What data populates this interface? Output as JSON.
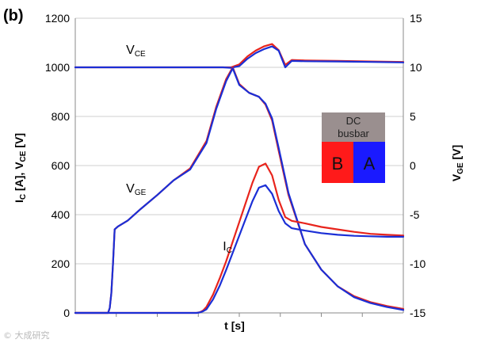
{
  "panel_label": "(b)",
  "watermark": "© 大成研究",
  "colors": {
    "series_B": "#e8241c",
    "series_A": "#1b2fd6",
    "grid": "#cfcfcf",
    "inset_header": "#9a8f8f"
  },
  "inset": {
    "title_line1": "DC",
    "title_line2": "busbar",
    "left_label": "B",
    "right_label": "A",
    "left_color": "#ff1a1a",
    "right_color": "#1a1aff",
    "header_color": "#9a8f8f"
  },
  "chart_data": {
    "type": "line",
    "title": "",
    "xlabel": "t [s]",
    "ylabel_left": "IC [A], VCE [V]",
    "ylabel_left_parts": {
      "i": "I",
      "i_sub": "C",
      "mid": " [A], V",
      "v_sub": "CE",
      "end": " [V]"
    },
    "ylabel_right": "VGE [V]",
    "ylabel_right_parts": {
      "main": "V",
      "sub": "GE",
      "end": " [V]"
    },
    "xlim": [
      0,
      10
    ],
    "ylim_left": [
      0,
      1200
    ],
    "ylim_right": [
      -15,
      15
    ],
    "left_ticks": [
      "0",
      "200",
      "400",
      "600",
      "800",
      "1000",
      "1200"
    ],
    "right_ticks": [
      "-15",
      "-10",
      "-5",
      "0",
      "5",
      "10",
      "15"
    ],
    "grid": "horizontal",
    "annotations": [
      {
        "main": "V",
        "sub": "CE",
        "x": 1.55,
        "y": 1055
      },
      {
        "main": "V",
        "sub": "GE",
        "x": 1.55,
        "y": 490
      },
      {
        "main": "I",
        "sub": "C",
        "x": 4.5,
        "y": 255
      }
    ],
    "series": [
      {
        "id": "VCE_B",
        "legend": "B",
        "axis": "left",
        "color": "#e8241c",
        "x": [
          0,
          4.5,
          4.75,
          5.0,
          5.25,
          5.5,
          5.75,
          6.0,
          6.2,
          6.4,
          6.6,
          7.0,
          8.0,
          9.0,
          10
        ],
        "y": [
          1000,
          1000,
          1000,
          1012,
          1045,
          1068,
          1085,
          1095,
          1070,
          1010,
          1030,
          1028,
          1026,
          1024,
          1022
        ]
      },
      {
        "id": "VCE_A",
        "legend": "A",
        "axis": "left",
        "color": "#1b2fd6",
        "x": [
          0,
          4.5,
          4.75,
          5.0,
          5.25,
          5.5,
          5.75,
          6.0,
          6.2,
          6.4,
          6.6,
          7.0,
          8.0,
          9.0,
          10
        ],
        "y": [
          1000,
          1000,
          998,
          1005,
          1035,
          1058,
          1074,
          1085,
          1068,
          1000,
          1026,
          1025,
          1024,
          1022,
          1020
        ]
      },
      {
        "id": "VGE_B",
        "legend": "B",
        "axis": "right",
        "color": "#e8241c",
        "x": [
          0,
          1.0,
          1.05,
          1.1,
          1.15,
          1.2,
          1.3,
          1.6,
          2.0,
          2.5,
          3.0,
          3.5,
          4.0,
          4.3,
          4.6,
          4.8,
          5.0,
          5.3,
          5.6,
          5.8,
          6.0,
          6.2,
          6.5,
          7.0,
          7.5,
          8.0,
          8.5,
          9.0,
          9.5,
          10
        ],
        "y": [
          -15,
          -15,
          -14.5,
          -13,
          -10,
          -6.5,
          -6.2,
          -5.6,
          -4.4,
          -3.0,
          -1.5,
          -0.3,
          2.5,
          6.0,
          8.8,
          10.0,
          8.3,
          7.4,
          7.0,
          6.2,
          4.6,
          1.5,
          -3.0,
          -8.0,
          -10.6,
          -12.3,
          -13.3,
          -13.9,
          -14.3,
          -14.6
        ]
      },
      {
        "id": "VGE_A",
        "legend": "A",
        "axis": "right",
        "color": "#1b2fd6",
        "x": [
          0,
          1.0,
          1.05,
          1.1,
          1.15,
          1.2,
          1.3,
          1.6,
          2.0,
          2.5,
          3.0,
          3.5,
          4.0,
          4.3,
          4.6,
          4.8,
          5.0,
          5.3,
          5.6,
          5.8,
          6.0,
          6.2,
          6.5,
          7.0,
          7.5,
          8.0,
          8.5,
          9.0,
          9.5,
          10
        ],
        "y": [
          -15,
          -15,
          -14.5,
          -13,
          -10,
          -6.5,
          -6.2,
          -5.6,
          -4.4,
          -3.0,
          -1.5,
          -0.4,
          2.3,
          5.8,
          8.6,
          9.9,
          8.2,
          7.4,
          7.0,
          6.3,
          4.8,
          1.8,
          -2.8,
          -8.0,
          -10.6,
          -12.3,
          -13.4,
          -14.0,
          -14.4,
          -14.7
        ]
      },
      {
        "id": "IC_B",
        "legend": "B",
        "axis": "left",
        "color": "#e8241c",
        "x": [
          0,
          3.7,
          3.8,
          3.9,
          4.0,
          4.2,
          4.4,
          4.6,
          4.8,
          5.0,
          5.2,
          5.4,
          5.6,
          5.8,
          6.0,
          6.2,
          6.4,
          6.6,
          7.0,
          7.5,
          8.0,
          8.5,
          9.0,
          9.5,
          10
        ],
        "y": [
          0,
          0,
          3,
          10,
          25,
          75,
          140,
          210,
          290,
          370,
          450,
          530,
          595,
          608,
          560,
          460,
          390,
          375,
          365,
          350,
          340,
          330,
          322,
          318,
          315
        ]
      },
      {
        "id": "IC_A",
        "legend": "A",
        "axis": "left",
        "color": "#1b2fd6",
        "x": [
          0,
          3.7,
          3.8,
          3.9,
          4.0,
          4.2,
          4.4,
          4.6,
          4.8,
          5.0,
          5.2,
          5.4,
          5.6,
          5.8,
          6.0,
          6.2,
          6.4,
          6.6,
          7.0,
          7.5,
          8.0,
          8.5,
          9.0,
          9.5,
          10
        ],
        "y": [
          0,
          0,
          2,
          7,
          15,
          55,
          110,
          175,
          245,
          315,
          385,
          455,
          510,
          520,
          485,
          415,
          365,
          345,
          335,
          325,
          318,
          314,
          312,
          310,
          310
        ]
      }
    ]
  }
}
